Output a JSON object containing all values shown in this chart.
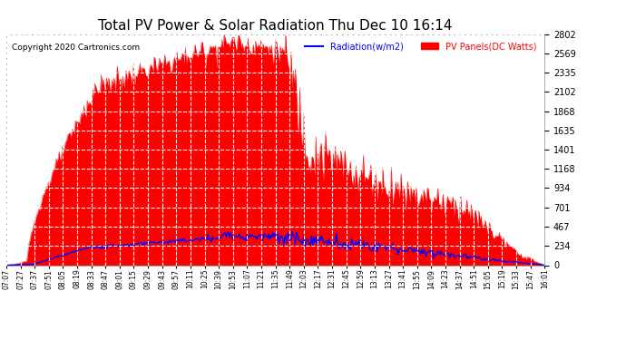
{
  "title": "Total PV Power & Solar Radiation Thu Dec 10 16:14",
  "copyright": "Copyright 2020 Cartronics.com",
  "legend_radiation": "Radiation(w/m2)",
  "legend_pv": "PV Panels(DC Watts)",
  "radiation_color": "#0000ff",
  "pv_color": "#ff0000",
  "bg_color": "#ffffff",
  "plot_bg_color": "#ffffff",
  "grid_color": "#cccccc",
  "title_color": "#000000",
  "copyright_color": "#000000",
  "yticks": [
    0.0,
    233.5,
    467.1,
    700.6,
    934.2,
    1167.7,
    1401.3,
    1634.8,
    1868.3,
    2101.9,
    2335.4,
    2569.0,
    2802.5
  ],
  "ymax": 2802.5,
  "ymin": 0.0,
  "tick_color": "#000000",
  "x_labels": [
    "07:07",
    "07:27",
    "07:37",
    "07:51",
    "08:05",
    "08:19",
    "08:33",
    "08:47",
    "09:01",
    "09:15",
    "09:29",
    "09:43",
    "09:57",
    "10:11",
    "10:25",
    "10:39",
    "10:53",
    "11:07",
    "11:21",
    "11:35",
    "11:49",
    "12:03",
    "12:17",
    "12:31",
    "12:45",
    "12:59",
    "13:13",
    "13:27",
    "13:41",
    "13:55",
    "14:09",
    "14:23",
    "14:37",
    "14:51",
    "15:05",
    "15:19",
    "15:33",
    "15:47",
    "16:01"
  ]
}
